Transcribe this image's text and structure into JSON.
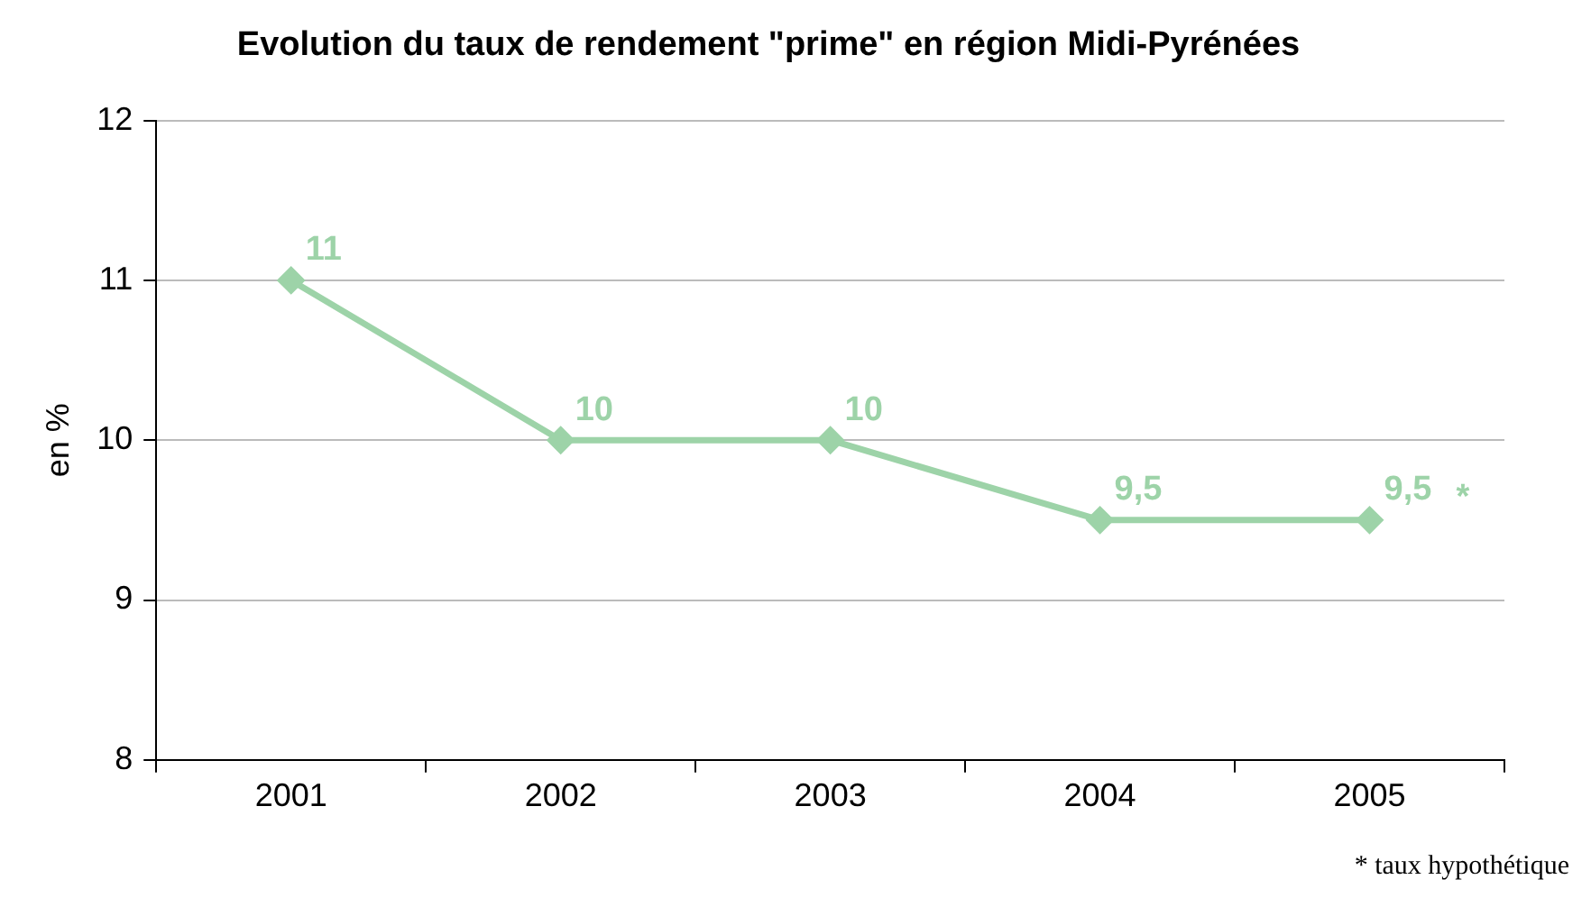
{
  "chart_data": {
    "type": "line",
    "title": "Evolution du taux de rendement \"prime\" en région Midi-Pyrénées",
    "ylabel": "en %",
    "categories": [
      "2001",
      "2002",
      "2003",
      "2004",
      "2005"
    ],
    "series": [
      {
        "color": "#9dd3a8",
        "values": [
          11,
          10,
          10,
          9.5,
          9.5
        ],
        "value_labels": [
          "11",
          "10",
          "10",
          "9,5",
          "9,5"
        ]
      }
    ],
    "ylim": [
      8,
      12
    ],
    "yticks": [
      8,
      9,
      10,
      11,
      12
    ],
    "grid": "y",
    "legend": false,
    "marker": "diamond",
    "line_style": "solid",
    "annotations": [
      {
        "text": "*",
        "x": "2005",
        "y": 9.5
      },
      "* taux hypothétique"
    ]
  }
}
